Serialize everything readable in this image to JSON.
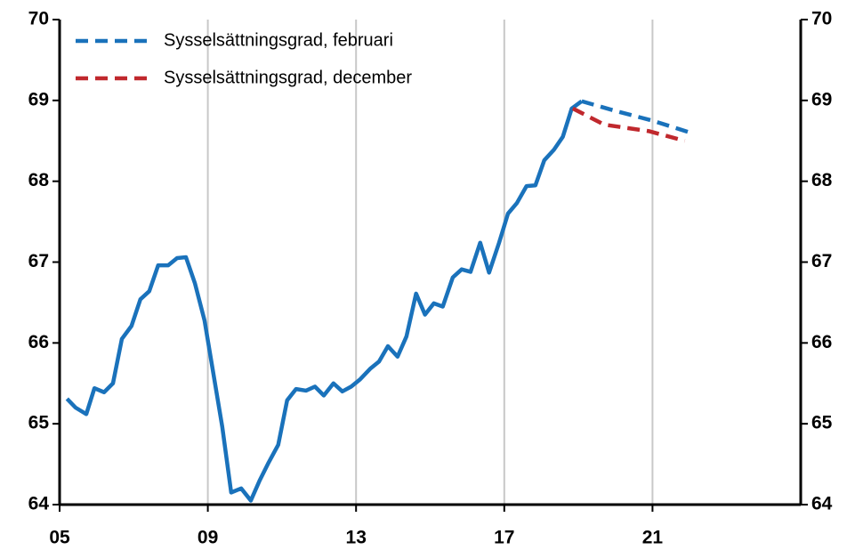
{
  "chart_data": {
    "type": "line",
    "xlim": [
      2005,
      2025
    ],
    "xticks": [
      {
        "value": 2005,
        "label": "05"
      },
      {
        "value": 2009,
        "label": "09"
      },
      {
        "value": 2013,
        "label": "13"
      },
      {
        "value": 2017,
        "label": "17"
      },
      {
        "value": 2021,
        "label": "21"
      }
    ],
    "ylim": [
      64,
      70
    ],
    "yticks": [
      64,
      65,
      66,
      67,
      68,
      69,
      70
    ],
    "y2lim": [
      64,
      70
    ],
    "y2ticks": [
      64,
      65,
      66,
      67,
      68,
      69,
      70
    ],
    "grid": "x",
    "legend": "upper left",
    "series": [
      {
        "color": "#1a72bb",
        "style": "solid",
        "x": [
          2005.2,
          2005.43,
          2005.72,
          2005.94,
          2006.2,
          2006.44,
          2006.68,
          2006.94,
          2007.18,
          2007.42,
          2007.66,
          2007.93,
          2008.17,
          2008.41,
          2008.65,
          2008.91,
          2009.15,
          2009.39,
          2009.63,
          2009.9,
          2010.16,
          2010.4,
          2010.64,
          2010.9,
          2011.14,
          2011.38,
          2011.65,
          2011.89,
          2012.13,
          2012.39,
          2012.63,
          2012.87,
          2013.11,
          2013.38,
          2013.62,
          2013.86,
          2014.12,
          2014.36,
          2014.62,
          2014.86,
          2015.1,
          2015.34,
          2015.61,
          2015.85,
          2016.09,
          2016.35,
          2016.59,
          2016.86,
          2017.1,
          2017.34,
          2017.6,
          2017.84,
          2018.08,
          2018.34,
          2018.58,
          2018.82,
          2019.09
        ],
        "values": [
          65.31,
          65.2,
          65.12,
          65.44,
          65.39,
          65.5,
          66.05,
          66.21,
          66.54,
          66.64,
          66.96,
          66.96,
          67.05,
          67.06,
          66.74,
          66.28,
          65.62,
          64.96,
          64.15,
          64.2,
          64.05,
          64.3,
          64.52,
          64.74,
          65.29,
          65.43,
          65.41,
          65.46,
          65.35,
          65.5,
          65.4,
          65.46,
          65.55,
          65.68,
          65.77,
          65.96,
          65.83,
          66.08,
          66.61,
          66.35,
          66.49,
          66.45,
          66.81,
          66.91,
          66.88,
          67.24,
          66.87,
          67.24,
          67.6,
          67.73,
          67.94,
          67.95,
          68.26,
          68.39,
          68.55,
          68.9,
          68.99
        ]
      },
      {
        "name": "Sysselsättningsgrad, februari",
        "color": "#1a72bb",
        "style": "dashed",
        "x": [
          2019.09,
          2020.0,
          2021.0,
          2022.1
        ],
        "values": [
          68.99,
          68.87,
          68.75,
          68.59
        ]
      },
      {
        "name": "Sysselsättningsgrad, december",
        "color": "#c0282d",
        "style": "dashed",
        "x": [
          2018.85,
          2019.7,
          2020.9,
          2021.87
        ],
        "values": [
          68.9,
          68.7,
          68.62,
          68.5
        ]
      }
    ]
  }
}
